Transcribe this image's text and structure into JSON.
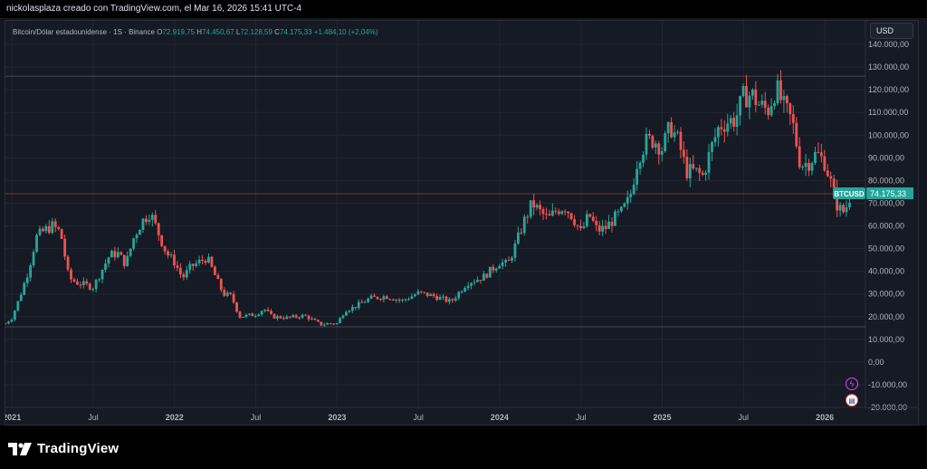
{
  "caption": "nickolasplaza creado con TradingView.com, el Mar 16, 2026 15:41 UTC-4",
  "legend": {
    "symbol": "Bitcoin/Dólar estadounidense · 1S · Binance",
    "open_label": "O",
    "open": "72.919,75",
    "high_label": "H",
    "high": "74.450,67",
    "low_label": "L",
    "low": "72.128,59",
    "close_label": "C",
    "close": "74.175,33",
    "change": "+1.484,10 (+2,04%)"
  },
  "currency_button": "USD",
  "price_tag": {
    "symbol": "BTCUSD",
    "value": "74.175,33"
  },
  "brand": "TradingView",
  "colors": {
    "up": "#26a69a",
    "down": "#ef5350",
    "background": "#161a25",
    "grid": "#22262f"
  },
  "chart_data": {
    "type": "candlestick",
    "y_axis_labels": [
      "140.000,00",
      "130.000,00",
      "120.000,00",
      "110.000,00",
      "100.000,00",
      "90.000,00",
      "80.000,00",
      "70.000,00",
      "60.000,00",
      "50.000,00",
      "40.000,00",
      "30.000,00",
      "20.000,00",
      "10.000,00",
      "0,00",
      "-10.000,00",
      "-20.000,00"
    ],
    "ylim": [
      -20000,
      140000
    ],
    "x_axis_labels": [
      "2021",
      "Jul",
      "2022",
      "Jul",
      "2023",
      "Jul",
      "2024",
      "Jul",
      "2025",
      "Jul",
      "2026"
    ],
    "x_axis_years": [
      2021,
      2021.5,
      2022,
      2022.5,
      2023,
      2023.5,
      2024,
      2024.5,
      2025,
      2025.5,
      2026
    ],
    "xlim": [
      2020.96,
      2026.25
    ],
    "horizontal_lines": [
      126000,
      74175.33,
      15500
    ],
    "close_path": [
      [
        2020.96,
        17000
      ],
      [
        2021.0,
        19500
      ],
      [
        2021.05,
        29000
      ],
      [
        2021.1,
        40000
      ],
      [
        2021.15,
        55000
      ],
      [
        2021.2,
        58000
      ],
      [
        2021.25,
        60000
      ],
      [
        2021.3,
        57000
      ],
      [
        2021.35,
        37000
      ],
      [
        2021.4,
        35000
      ],
      [
        2021.45,
        34000
      ],
      [
        2021.5,
        33000
      ],
      [
        2021.55,
        40000
      ],
      [
        2021.6,
        47000
      ],
      [
        2021.65,
        48000
      ],
      [
        2021.7,
        43000
      ],
      [
        2021.75,
        55000
      ],
      [
        2021.8,
        62000
      ],
      [
        2021.85,
        66000
      ],
      [
        2021.9,
        57000
      ],
      [
        2021.95,
        48000
      ],
      [
        2022.0,
        44000
      ],
      [
        2022.05,
        37000
      ],
      [
        2022.1,
        42000
      ],
      [
        2022.15,
        44000
      ],
      [
        2022.2,
        46000
      ],
      [
        2022.25,
        38000
      ],
      [
        2022.3,
        30000
      ],
      [
        2022.35,
        29000
      ],
      [
        2022.4,
        20000
      ],
      [
        2022.5,
        21000
      ],
      [
        2022.55,
        23500
      ],
      [
        2022.6,
        20000
      ],
      [
        2022.7,
        19500
      ],
      [
        2022.8,
        20500
      ],
      [
        2022.9,
        16500
      ],
      [
        2022.95,
        17000
      ],
      [
        2023.0,
        17000
      ],
      [
        2023.05,
        23000
      ],
      [
        2023.1,
        24000
      ],
      [
        2023.2,
        28000
      ],
      [
        2023.3,
        29000
      ],
      [
        2023.4,
        27000
      ],
      [
        2023.5,
        30500
      ],
      [
        2023.6,
        29000
      ],
      [
        2023.7,
        26500
      ],
      [
        2023.8,
        35000
      ],
      [
        2023.9,
        37500
      ],
      [
        2024.0,
        44000
      ],
      [
        2024.05,
        43000
      ],
      [
        2024.1,
        52000
      ],
      [
        2024.15,
        62000
      ],
      [
        2024.2,
        70000
      ],
      [
        2024.25,
        66000
      ],
      [
        2024.3,
        63000
      ],
      [
        2024.35,
        67000
      ],
      [
        2024.4,
        68500
      ],
      [
        2024.45,
        64000
      ],
      [
        2024.5,
        57000
      ],
      [
        2024.55,
        65000
      ],
      [
        2024.6,
        58000
      ],
      [
        2024.65,
        59000
      ],
      [
        2024.7,
        63000
      ],
      [
        2024.75,
        66000
      ],
      [
        2024.8,
        72000
      ],
      [
        2024.85,
        90000
      ],
      [
        2024.9,
        97000
      ],
      [
        2024.95,
        98000
      ],
      [
        2025.0,
        94000
      ],
      [
        2025.05,
        104000
      ],
      [
        2025.1,
        97000
      ],
      [
        2025.15,
        84000
      ],
      [
        2025.2,
        84000
      ],
      [
        2025.25,
        82000
      ],
      [
        2025.3,
        94000
      ],
      [
        2025.35,
        104000
      ],
      [
        2025.4,
        106000
      ],
      [
        2025.45,
        107000
      ],
      [
        2025.5,
        117000
      ],
      [
        2025.55,
        118000
      ],
      [
        2025.6,
        113000
      ],
      [
        2025.65,
        111000
      ],
      [
        2025.7,
        121000
      ],
      [
        2025.75,
        112000
      ],
      [
        2025.8,
        106000
      ],
      [
        2025.85,
        87000
      ],
      [
        2025.9,
        88000
      ],
      [
        2025.95,
        92000
      ],
      [
        2026.0,
        88000
      ],
      [
        2026.05,
        76000
      ],
      [
        2026.08,
        68000
      ],
      [
        2026.12,
        66000
      ],
      [
        2026.16,
        74175.33
      ]
    ]
  }
}
